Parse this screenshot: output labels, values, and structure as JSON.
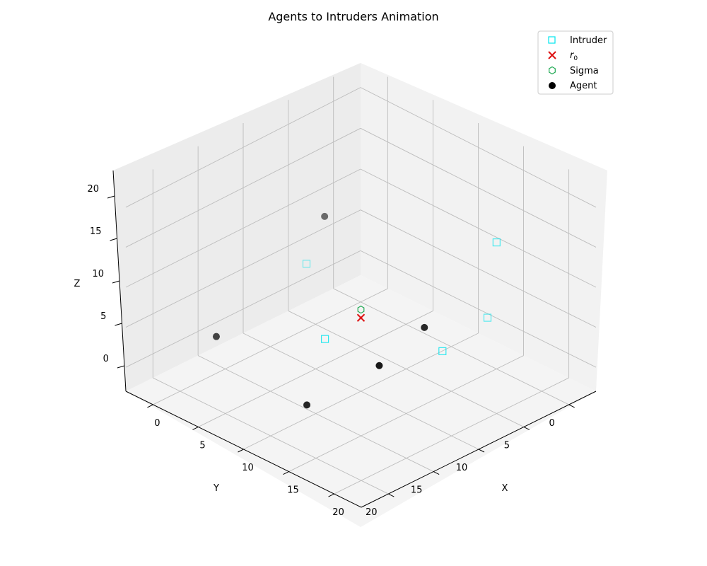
{
  "chart_data": {
    "type": "scatter",
    "title": "Agents to Intruders Animation",
    "xlabel": "X",
    "ylabel": "Y",
    "zlabel": "Z",
    "xlim": [
      -3,
      23
    ],
    "ylim": [
      -3,
      23
    ],
    "zlim": [
      -3,
      23
    ],
    "x_ticks": [
      "0",
      "5",
      "10",
      "15",
      "20"
    ],
    "y_ticks": [
      "0",
      "5",
      "10",
      "15",
      "20"
    ],
    "z_ticks": [
      "0",
      "5",
      "10",
      "15",
      "20"
    ],
    "grid": true,
    "legend_position": "top-right",
    "series": [
      {
        "name": "Intruder",
        "marker": "square",
        "color": "#00e5ee",
        "points": [
          [
            18,
            3,
            16
          ],
          [
            20,
            11,
            8
          ],
          [
            14,
            18,
            10
          ],
          [
            0,
            6,
            5
          ],
          [
            16,
            2,
            5
          ]
        ]
      },
      {
        "name": "r_0",
        "legend_label_main": "r",
        "legend_label_sub": "0",
        "marker": "x",
        "color": "#dd1111",
        "points": [
          [
            10,
            10,
            6
          ]
        ]
      },
      {
        "name": "Sigma",
        "marker": "hexagon",
        "color": "#22aa55",
        "points": [
          [
            10,
            10,
            7
          ]
        ]
      },
      {
        "name": "Agent",
        "marker": "circle",
        "color": "#000000",
        "points": [
          [
            20,
            13,
            12
          ],
          [
            3,
            7,
            13
          ],
          [
            4,
            20,
            6
          ],
          [
            14,
            20,
            3
          ],
          [
            20,
            18,
            10
          ]
        ]
      }
    ]
  }
}
